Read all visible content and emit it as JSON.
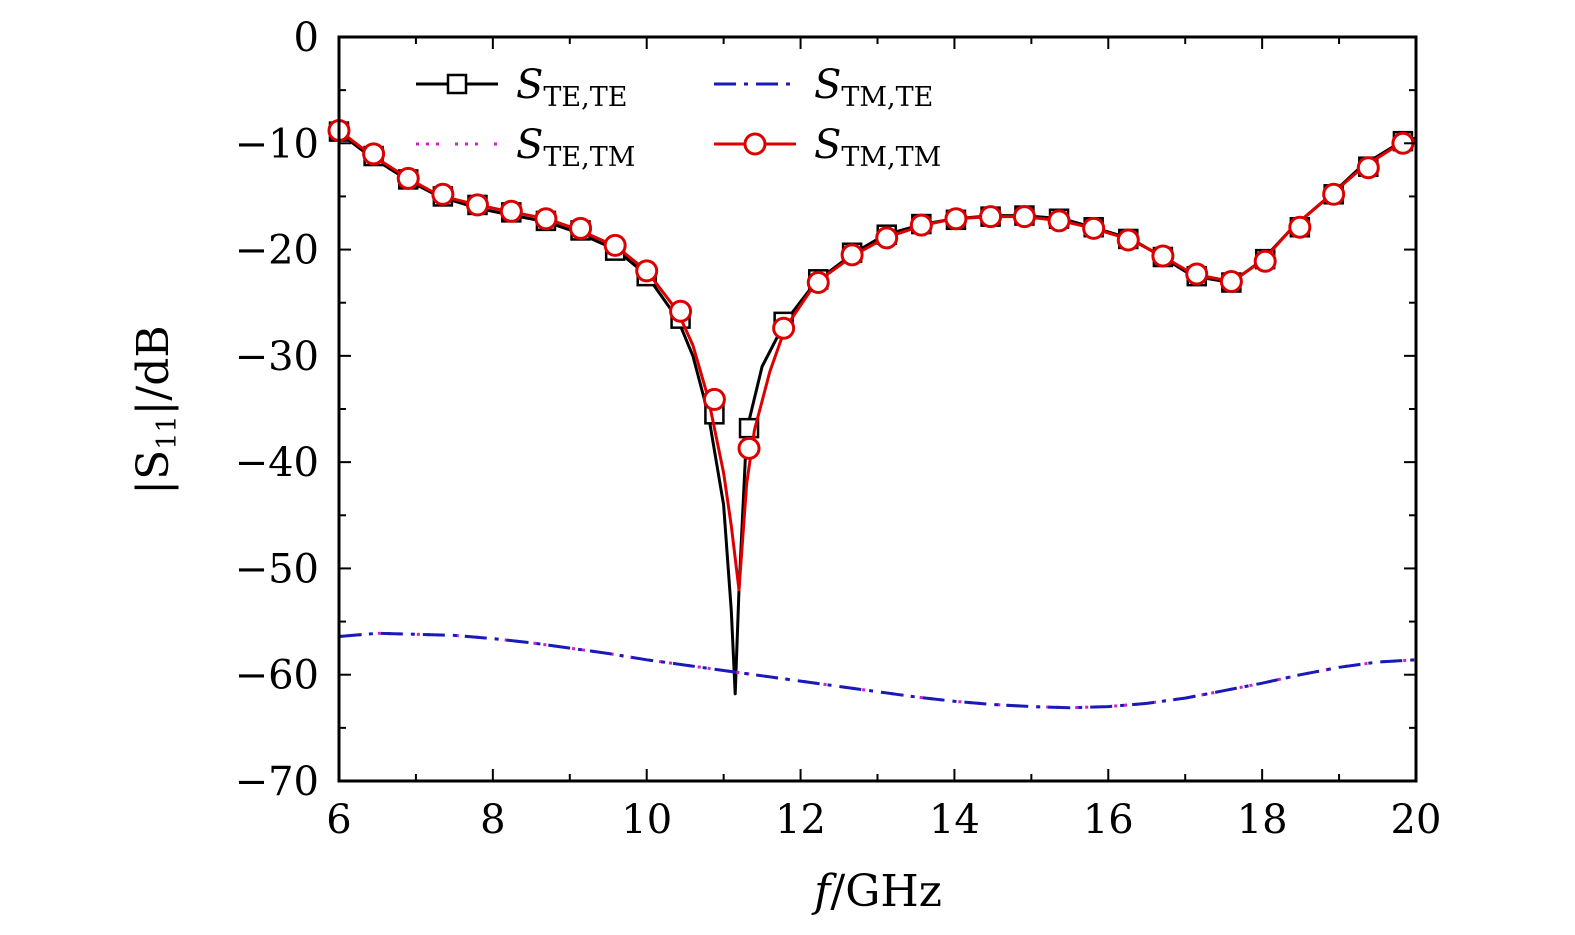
{
  "chart_data": {
    "type": "line",
    "xlabel": {
      "main": "f",
      "rest": "/GHz"
    },
    "ylabel": {
      "pre": "|S",
      "sub": "11",
      "post": "|/dB"
    },
    "xlim": [
      6,
      20
    ],
    "ylim": [
      -70,
      0
    ],
    "x_ticks": [
      "6",
      "8",
      "10",
      "12",
      "14",
      "16",
      "18",
      "20"
    ],
    "y_ticks": [
      "0",
      "−10",
      "−20",
      "−30",
      "−40",
      "−50",
      "−60",
      "−70"
    ],
    "x_tick_values": [
      6,
      8,
      10,
      12,
      14,
      16,
      18,
      20
    ],
    "y_tick_values": [
      0,
      -10,
      -20,
      -30,
      -40,
      -50,
      -60,
      -70
    ],
    "grid": false,
    "legend_position": "top-left",
    "series": [
      {
        "name": "S",
        "sub": "TE,TE",
        "color": "#000000",
        "line": "solid",
        "marker": "square",
        "x": [
          6.0,
          6.4,
          6.9,
          7.3,
          7.8,
          8.2,
          8.7,
          9.1,
          9.6,
          10.0,
          10.4,
          10.6,
          10.8,
          11.0,
          11.1,
          11.15,
          11.2,
          11.3,
          11.5,
          11.8,
          12.2,
          12.7,
          13.1,
          13.6,
          14.0,
          14.5,
          14.9,
          15.4,
          15.8,
          16.3,
          16.7,
          17.1,
          17.6,
          18.0,
          18.4,
          18.9,
          19.3,
          19.8,
          20.0
        ],
        "y": [
          -9.0,
          -11.2,
          -13.5,
          -15.0,
          -16.1,
          -16.7,
          -17.4,
          -18.4,
          -20.0,
          -22.4,
          -26.5,
          -30.0,
          -35.5,
          -44.0,
          -54.0,
          -61.8,
          -52.0,
          -37.0,
          -31.0,
          -26.8,
          -23.0,
          -20.3,
          -18.6,
          -17.6,
          -17.1,
          -16.8,
          -16.8,
          -17.1,
          -17.9,
          -19.0,
          -20.7,
          -22.5,
          -23.1,
          -21.0,
          -17.9,
          -14.8,
          -12.1,
          -9.9,
          -9.5
        ],
        "marker_x": [
          6.0,
          6.45,
          6.9,
          7.35,
          7.8,
          8.24,
          8.69,
          9.14,
          9.59,
          10.0,
          10.44,
          10.88,
          11.33,
          11.78,
          12.23,
          12.67,
          13.12,
          13.57,
          14.02,
          14.47,
          14.91,
          15.36,
          15.81,
          16.26,
          16.71,
          17.15,
          17.6,
          18.04,
          18.49,
          18.93,
          19.38,
          19.83
        ],
        "marker_y": [
          -8.9,
          -11.2,
          -13.4,
          -15.0,
          -15.8,
          -16.5,
          -17.3,
          -18.2,
          -20.1,
          -22.5,
          -26.5,
          -35.5,
          -36.8,
          -26.8,
          -22.8,
          -20.3,
          -18.6,
          -17.6,
          -17.2,
          -16.9,
          -16.8,
          -17.1,
          -17.9,
          -19.0,
          -20.7,
          -22.5,
          -23.1,
          -20.9,
          -17.9,
          -14.8,
          -12.2,
          -9.8
        ]
      },
      {
        "name": "S",
        "sub": "TE,TM",
        "color": "#d020d0",
        "line": "dashdotdot",
        "marker": "none",
        "x": [
          6.0,
          6.5,
          7.0,
          7.5,
          8.0,
          8.5,
          9.0,
          9.5,
          10.0,
          10.5,
          11.0,
          11.5,
          12.0,
          12.5,
          13.0,
          13.5,
          14.0,
          14.5,
          15.0,
          15.5,
          16.0,
          16.5,
          17.0,
          17.5,
          18.0,
          18.5,
          19.0,
          19.5,
          20.0
        ],
        "y": [
          -56.4,
          -56.1,
          -56.2,
          -56.3,
          -56.6,
          -57.0,
          -57.5,
          -58.0,
          -58.6,
          -59.1,
          -59.6,
          -60.1,
          -60.6,
          -61.1,
          -61.6,
          -62.1,
          -62.5,
          -62.8,
          -63.0,
          -63.1,
          -63.0,
          -62.7,
          -62.2,
          -61.5,
          -60.8,
          -60.0,
          -59.3,
          -58.8,
          -58.6
        ]
      },
      {
        "name": "S",
        "sub": "TM,TE",
        "color": "#1a1ab8",
        "line": "dashdot",
        "marker": "none",
        "x": [
          6.0,
          6.5,
          7.0,
          7.5,
          8.0,
          8.5,
          9.0,
          9.5,
          10.0,
          10.5,
          11.0,
          11.5,
          12.0,
          12.5,
          13.0,
          13.5,
          14.0,
          14.5,
          15.0,
          15.5,
          16.0,
          16.5,
          17.0,
          17.5,
          18.0,
          18.5,
          19.0,
          19.5,
          20.0
        ],
        "y": [
          -56.4,
          -56.1,
          -56.2,
          -56.3,
          -56.6,
          -57.0,
          -57.5,
          -58.0,
          -58.6,
          -59.1,
          -59.6,
          -60.1,
          -60.6,
          -61.1,
          -61.6,
          -62.1,
          -62.5,
          -62.8,
          -63.0,
          -63.1,
          -63.0,
          -62.7,
          -62.2,
          -61.5,
          -60.8,
          -60.0,
          -59.3,
          -58.8,
          -58.6
        ]
      },
      {
        "name": "S",
        "sub": "TM,TM",
        "color": "#dd0000",
        "line": "solid",
        "marker": "circle",
        "x": [
          6.0,
          6.4,
          6.9,
          7.3,
          7.8,
          8.2,
          8.7,
          9.1,
          9.6,
          10.0,
          10.4,
          10.6,
          10.8,
          11.0,
          11.1,
          11.2,
          11.3,
          11.4,
          11.6,
          11.8,
          12.2,
          12.7,
          13.1,
          13.6,
          14.0,
          14.5,
          14.9,
          15.4,
          15.8,
          16.3,
          16.7,
          17.1,
          17.6,
          18.0,
          18.4,
          18.9,
          19.3,
          19.8,
          20.0
        ],
        "y": [
          -8.8,
          -11.0,
          -13.3,
          -14.9,
          -15.8,
          -16.4,
          -17.1,
          -18.1,
          -19.7,
          -22.0,
          -25.8,
          -29.0,
          -34.0,
          -41.0,
          -46.0,
          -52.0,
          -42.0,
          -37.0,
          -31.5,
          -27.4,
          -23.1,
          -20.5,
          -18.9,
          -17.7,
          -17.1,
          -16.9,
          -16.9,
          -17.3,
          -18.0,
          -19.1,
          -20.6,
          -22.3,
          -23.0,
          -21.1,
          -17.9,
          -14.8,
          -12.3,
          -10.0,
          -9.7
        ],
        "marker_x": [
          6.0,
          6.45,
          6.9,
          7.35,
          7.8,
          8.24,
          8.69,
          9.14,
          9.59,
          10.0,
          10.44,
          10.88,
          11.33,
          11.78,
          12.23,
          12.67,
          13.12,
          13.57,
          14.02,
          14.47,
          14.91,
          15.36,
          15.81,
          16.26,
          16.71,
          17.15,
          17.6,
          18.04,
          18.49,
          18.93,
          19.38,
          19.83
        ],
        "marker_y": [
          -8.8,
          -11.0,
          -13.3,
          -14.8,
          -15.8,
          -16.4,
          -17.1,
          -18.0,
          -19.6,
          -22.0,
          -25.8,
          -34.1,
          -38.7,
          -27.4,
          -23.1,
          -20.5,
          -18.9,
          -17.7,
          -17.1,
          -16.9,
          -16.9,
          -17.3,
          -18.0,
          -19.1,
          -20.6,
          -22.3,
          -23.0,
          -21.1,
          -17.9,
          -14.8,
          -12.3,
          -10.0
        ]
      }
    ]
  }
}
